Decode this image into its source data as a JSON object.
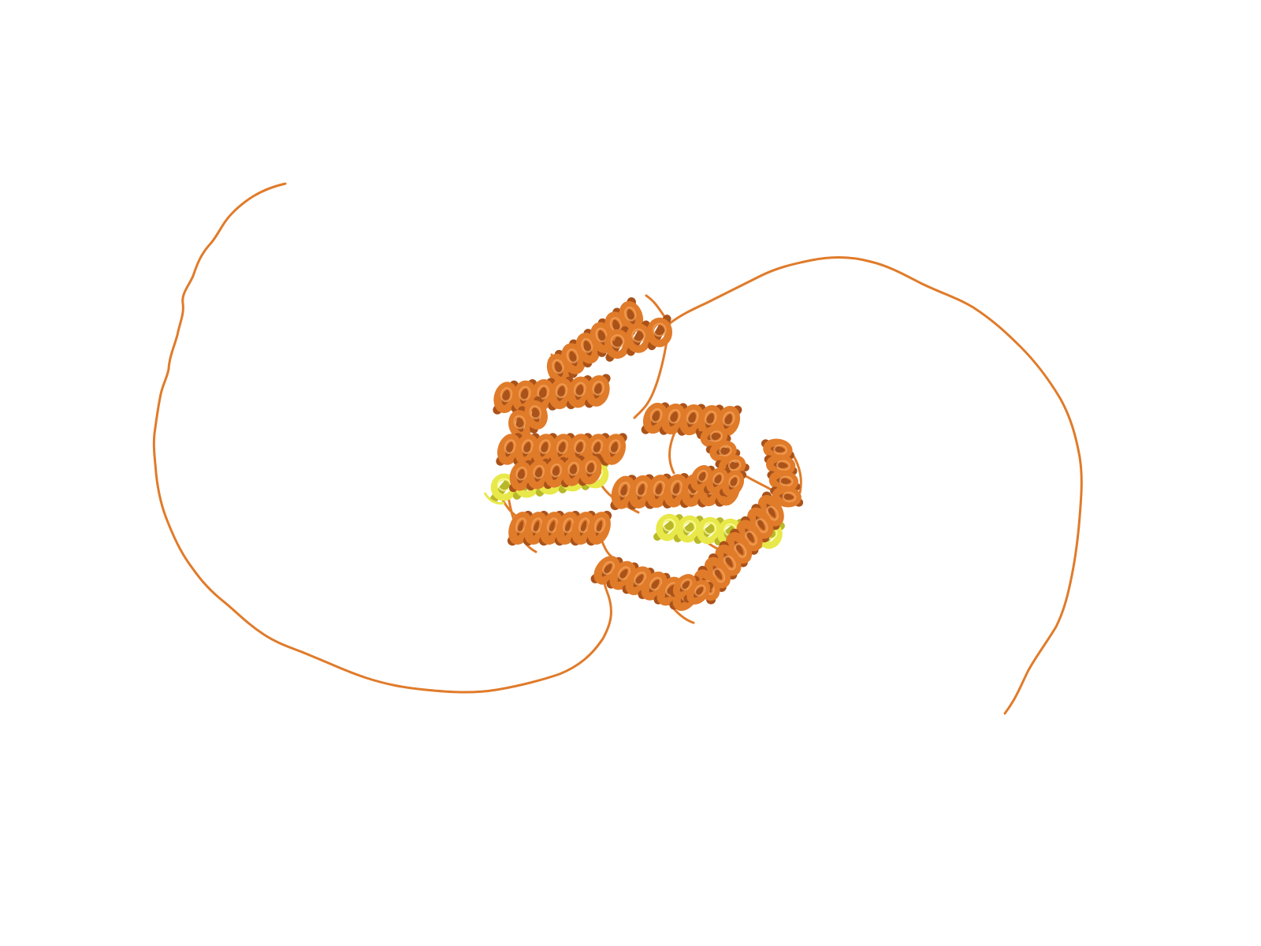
{
  "scene": {
    "background_color": "#ffffff",
    "style": "cartoon ribbon",
    "colors": {
      "primary_chain": "#e07b2a",
      "primary_chain_dark": "#a9521a",
      "primary_chain_light": "#f3a55e",
      "secondary_chain": "#e8e84a",
      "secondary_chain_dark": "#b8b82a"
    }
  }
}
